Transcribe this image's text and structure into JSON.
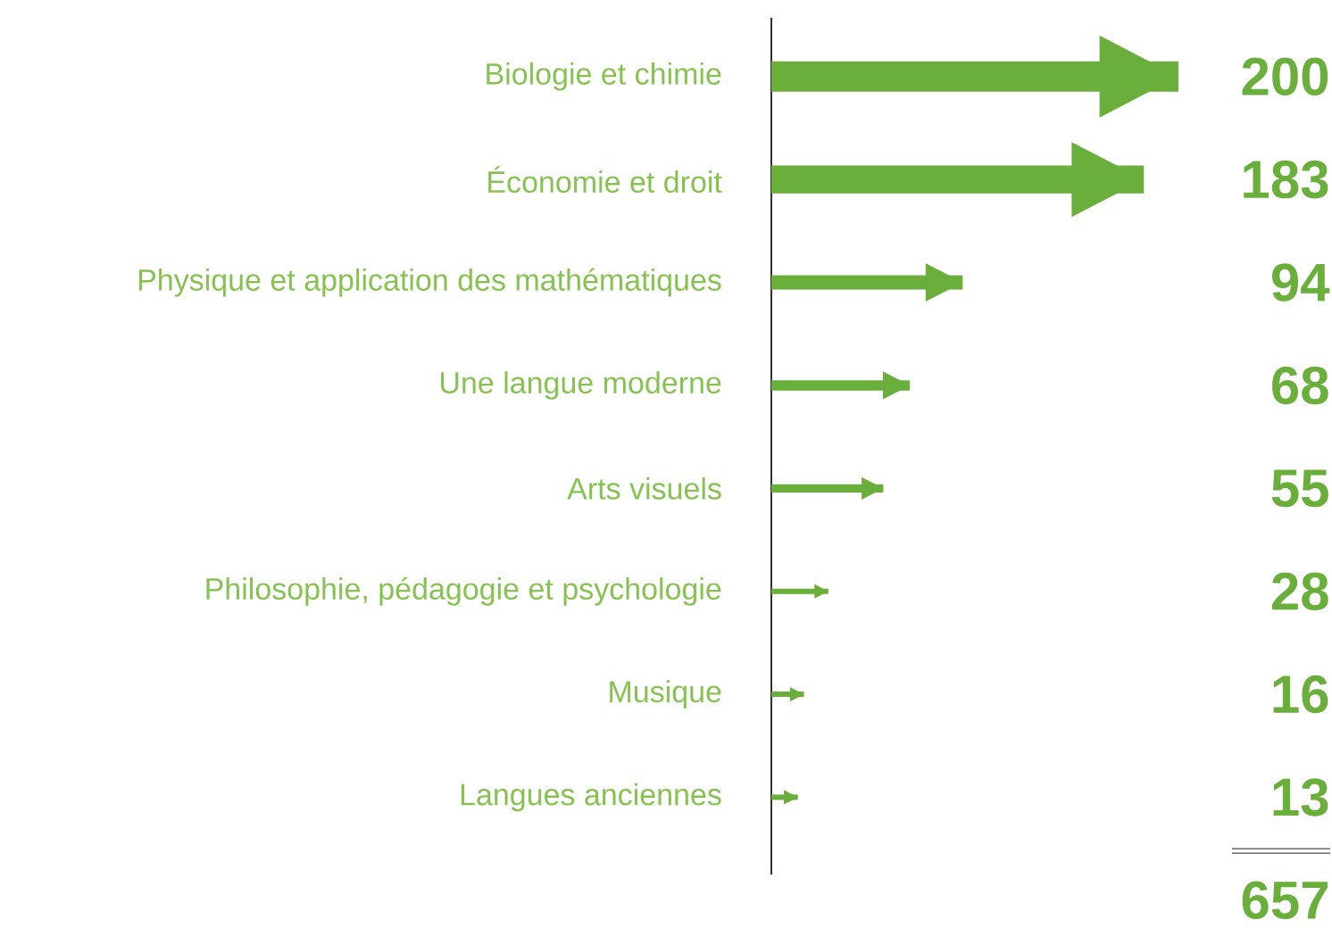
{
  "chart_data": {
    "type": "bar",
    "orientation": "horizontal",
    "categories": [
      "Biologie et chimie",
      "Économie et droit",
      "Physique et application des mathématiques",
      "Une langue moderne",
      "Arts visuels",
      "Philosophie, pédagogie et psychologie",
      "Musique",
      "Langues anciennes"
    ],
    "values": [
      200,
      183,
      94,
      68,
      55,
      28,
      16,
      13
    ],
    "color": "#6aae3b",
    "xlim": [
      0,
      200
    ],
    "data_labels": true,
    "tick_labels": "y",
    "annotations": [
      "657"
    ]
  }
}
